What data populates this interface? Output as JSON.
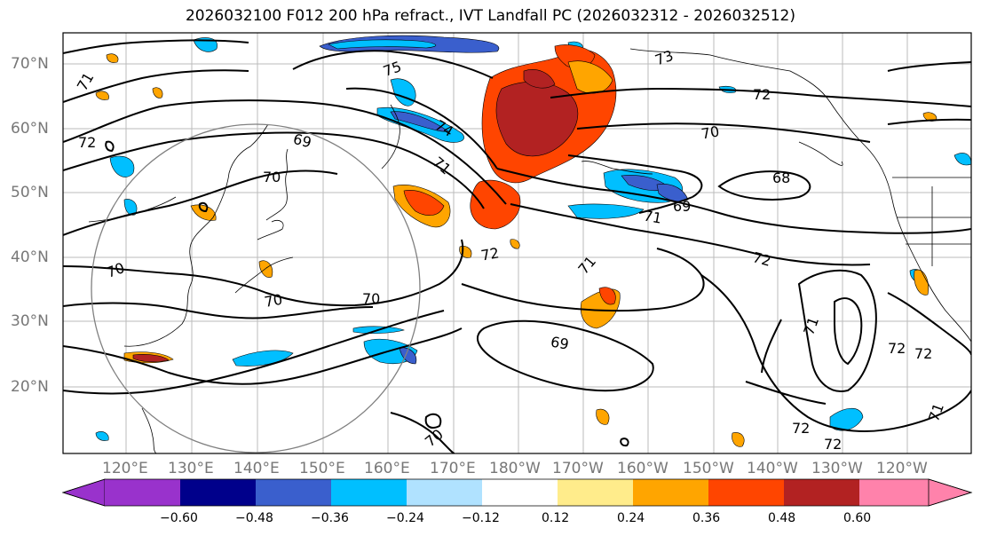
{
  "title": "2026032100 F012 200 hPa refract., IVT Landfall PC (2026032312 - 2026032512)",
  "lat_labels": [
    "70°N",
    "60°N",
    "50°N",
    "40°N",
    "30°N",
    "20°N"
  ],
  "lon_labels": [
    "120°E",
    "130°E",
    "140°E",
    "150°E",
    "160°E",
    "170°E",
    "180°W",
    "170°W",
    "160°W",
    "150°W",
    "140°W",
    "130°W",
    "120°W"
  ],
  "colorbar": {
    "colors": [
      "#9932cc",
      "#00008b",
      "#3a5fcd",
      "#00bfff",
      "#b0e2ff",
      "#ffffff",
      "#ffec8b",
      "#ffa500",
      "#ff4500",
      "#b22222",
      "#ff82ab"
    ],
    "ticks": [
      "−0.60",
      "−0.48",
      "−0.36",
      "−0.24",
      "−0.12",
      "0.12",
      "0.24",
      "0.36",
      "0.48",
      "0.60"
    ]
  },
  "contour_labels": [
    "71",
    "72",
    "69",
    "70",
    "73",
    "75",
    "74",
    "71",
    "72",
    "68",
    "69",
    "71",
    "72",
    "71",
    "72",
    "70",
    "70",
    "69",
    "70",
    "71",
    "72",
    "72",
    "72",
    "72",
    "71",
    "70",
    "70"
  ]
}
